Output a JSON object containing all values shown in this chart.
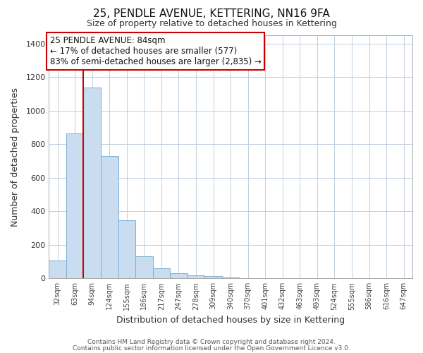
{
  "title": "25, PENDLE AVENUE, KETTERING, NN16 9FA",
  "subtitle": "Size of property relative to detached houses in Kettering",
  "xlabel": "Distribution of detached houses by size in Kettering",
  "ylabel": "Number of detached properties",
  "bar_values": [
    107,
    865,
    1140,
    730,
    345,
    130,
    62,
    32,
    20,
    15,
    5,
    0,
    0,
    0,
    0,
    0,
    0,
    0,
    0,
    0,
    0
  ],
  "bar_labels": [
    "32sqm",
    "63sqm",
    "94sqm",
    "124sqm",
    "155sqm",
    "186sqm",
    "217sqm",
    "247sqm",
    "278sqm",
    "309sqm",
    "340sqm",
    "370sqm",
    "401sqm",
    "432sqm",
    "463sqm",
    "493sqm",
    "524sqm",
    "555sqm",
    "586sqm",
    "616sqm",
    "647sqm"
  ],
  "bar_color": "#c9dcf0",
  "bar_edge_color": "#7bafd4",
  "vline_color": "#cc0000",
  "vline_x": 1.5,
  "ylim": [
    0,
    1450
  ],
  "yticks": [
    0,
    200,
    400,
    600,
    800,
    1000,
    1200,
    1400
  ],
  "annotation_title": "25 PENDLE AVENUE: 84sqm",
  "annotation_line1": "← 17% of detached houses are smaller (577)",
  "annotation_line2": "83% of semi-detached houses are larger (2,835) →",
  "footer1": "Contains HM Land Registry data © Crown copyright and database right 2024.",
  "footer2": "Contains public sector information licensed under the Open Government Licence v3.0.",
  "background_color": "#ffffff",
  "grid_color": "#c0cfe0"
}
